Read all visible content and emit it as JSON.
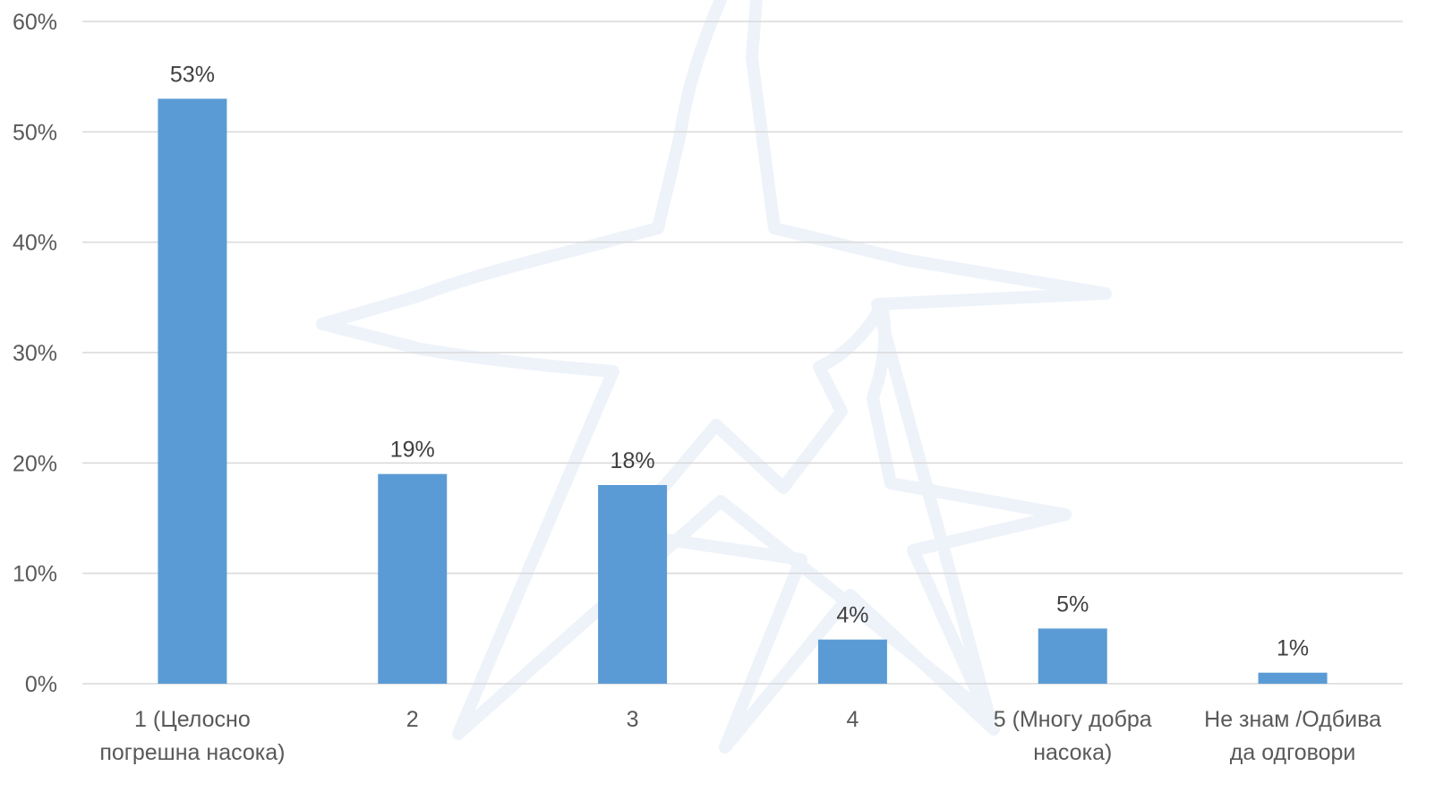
{
  "chart_data": {
    "type": "bar",
    "title": "",
    "xlabel": "",
    "ylabel": "",
    "categories": [
      [
        "1 (Целосно",
        "погрешна насока)"
      ],
      [
        "2"
      ],
      [
        "3"
      ],
      [
        "4"
      ],
      [
        "5 (Многу добра",
        "насока)"
      ],
      [
        "Не знам /Одбива",
        "да одговори"
      ]
    ],
    "values": [
      53,
      19,
      18,
      4,
      5,
      1
    ],
    "value_labels": [
      "53%",
      "19%",
      "18%",
      "4%",
      "5%",
      "1%"
    ],
    "y_ticks": [
      0,
      10,
      20,
      30,
      40,
      50,
      60
    ],
    "y_tick_labels": [
      "0%",
      "10%",
      "20%",
      "30%",
      "40%",
      "50%",
      "60%"
    ],
    "ylim": [
      0,
      60
    ],
    "grid": true,
    "legend": "none",
    "bar_color": "#5b9bd5",
    "grid_color": "#d9d9d9",
    "watermark_color": "#eef3fa"
  }
}
